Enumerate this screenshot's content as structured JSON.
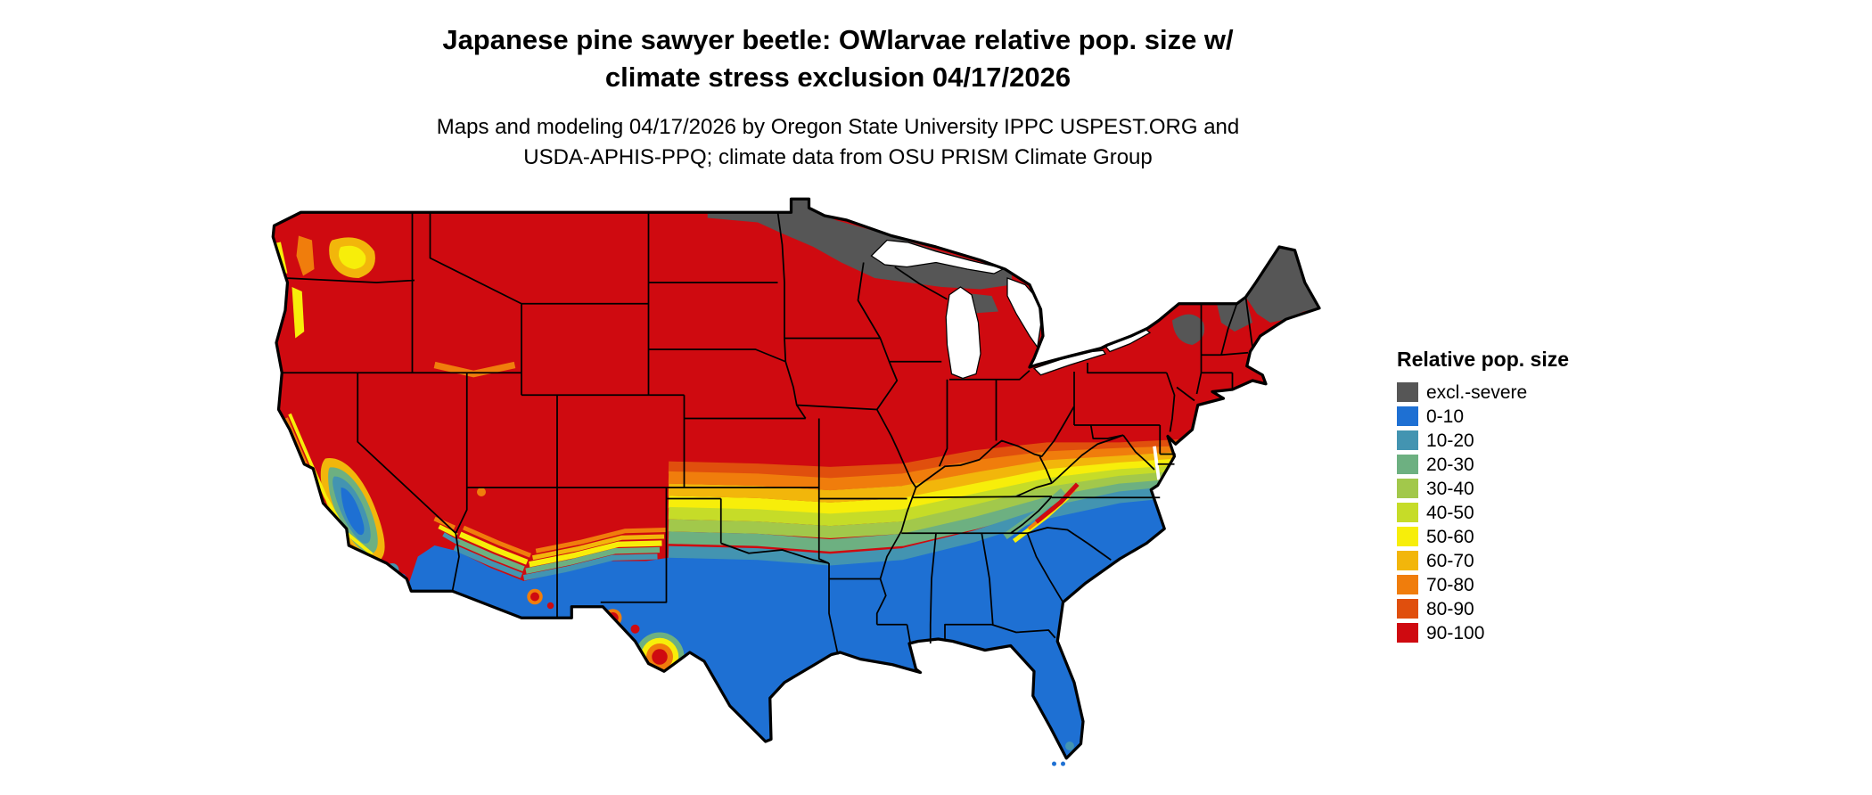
{
  "title": {
    "line1": "Japanese pine sawyer beetle: OWlarvae relative pop. size w/",
    "line2": "climate stress exclusion 04/17/2026"
  },
  "subtitle": {
    "line1": "Maps and modeling 04/17/2026 by Oregon State University IPPC USPEST.ORG and",
    "line2": "USDA-APHIS-PPQ; climate data from OSU PRISM Climate Group"
  },
  "legend": {
    "title": "Relative pop. size",
    "entries": [
      {
        "label": "excl.-severe",
        "color": "#565656"
      },
      {
        "label": "0-10",
        "color": "#1e70d3"
      },
      {
        "label": "10-20",
        "color": "#4394b1"
      },
      {
        "label": "20-30",
        "color": "#6db081"
      },
      {
        "label": "30-40",
        "color": "#a2c84b"
      },
      {
        "label": "40-50",
        "color": "#c6dc28"
      },
      {
        "label": "50-60",
        "color": "#f7ee0a"
      },
      {
        "label": "60-70",
        "color": "#f2b60b"
      },
      {
        "label": "70-80",
        "color": "#f07d0c"
      },
      {
        "label": "80-90",
        "color": "#e04f0d"
      },
      {
        "label": "90-100",
        "color": "#cf0a10"
      }
    ]
  }
}
